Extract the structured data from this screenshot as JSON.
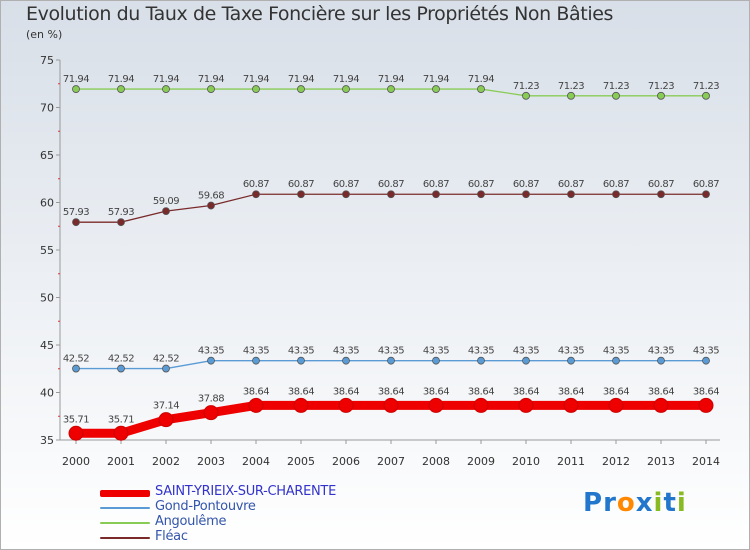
{
  "chart_data": {
    "type": "line",
    "title": "Evolution du Taux de Taxe Foncière sur les Propriétés Non Bâties",
    "ylabel": "(en %)",
    "xlabel": "",
    "ylim": [
      35,
      75
    ],
    "yticks": [
      "35",
      "40",
      "45",
      "50",
      "55",
      "60",
      "65",
      "70",
      "75"
    ],
    "categories": [
      "2000",
      "2001",
      "2002",
      "2003",
      "2004",
      "2005",
      "2006",
      "2007",
      "2008",
      "2009",
      "2010",
      "2011",
      "2012",
      "2013",
      "2014"
    ],
    "series": [
      {
        "name": "SAINT-YRIEIX-SUR-CHARENTE",
        "color": "#ee0000",
        "legend_color": "#3333cc",
        "values": [
          35.71,
          35.71,
          37.14,
          37.88,
          38.64,
          38.64,
          38.64,
          38.64,
          38.64,
          38.64,
          38.64,
          38.64,
          38.64,
          38.64,
          38.64
        ],
        "labels": [
          "35.71",
          "35.71",
          "37.14",
          "37.88",
          "38.64",
          "38.64",
          "38.64",
          "38.64",
          "38.64",
          "38.64",
          "38.64",
          "38.64",
          "38.64",
          "38.64",
          "38.64"
        ]
      },
      {
        "name": "Gond-Pontouvre",
        "color": "#5b9bd5",
        "legend_color": "#333333",
        "values": [
          42.52,
          42.52,
          42.52,
          43.35,
          43.35,
          43.35,
          43.35,
          43.35,
          43.35,
          43.35,
          43.35,
          43.35,
          43.35,
          43.35,
          43.35
        ],
        "labels": [
          "42.52",
          "42.52",
          "42.52",
          "43.35",
          "43.35",
          "43.35",
          "43.35",
          "43.35",
          "43.35",
          "43.35",
          "43.35",
          "43.35",
          "43.35",
          "43.35",
          "43.35"
        ]
      },
      {
        "name": "Angoulême",
        "color": "#88cc55",
        "legend_color": "#333333",
        "values": [
          71.94,
          71.94,
          71.94,
          71.94,
          71.94,
          71.94,
          71.94,
          71.94,
          71.94,
          71.94,
          71.23,
          71.23,
          71.23,
          71.23,
          71.23
        ],
        "labels": [
          "71.94",
          "71.94",
          "71.94",
          "71.94",
          "71.94",
          "71.94",
          "71.94",
          "71.94",
          "71.94",
          "71.94",
          "71.23",
          "71.23",
          "71.23",
          "71.23",
          "71.23"
        ]
      },
      {
        "name": "Fléac",
        "color": "#7a2a2a",
        "legend_color": "#333333",
        "values": [
          57.93,
          57.93,
          59.09,
          59.68,
          60.87,
          60.87,
          60.87,
          60.87,
          60.87,
          60.87,
          60.87,
          60.87,
          60.87,
          60.87,
          60.87
        ],
        "labels": [
          "57.93",
          "57.93",
          "59.09",
          "59.68",
          "60.87",
          "60.87",
          "60.87",
          "60.87",
          "60.87",
          "60.87",
          "60.87",
          "60.87",
          "60.87",
          "60.87",
          "60.87"
        ]
      }
    ],
    "grid": false,
    "legend": "bottom-left"
  },
  "logo": {
    "text": "Proxiti",
    "letters": [
      "P",
      "r",
      "o",
      "x",
      "i",
      "t",
      "i"
    ],
    "colors": [
      "#2277cc",
      "#2277cc",
      "#ff8800",
      "#2277cc",
      "#88bb22",
      "#2277cc",
      "#88bb22"
    ]
  }
}
